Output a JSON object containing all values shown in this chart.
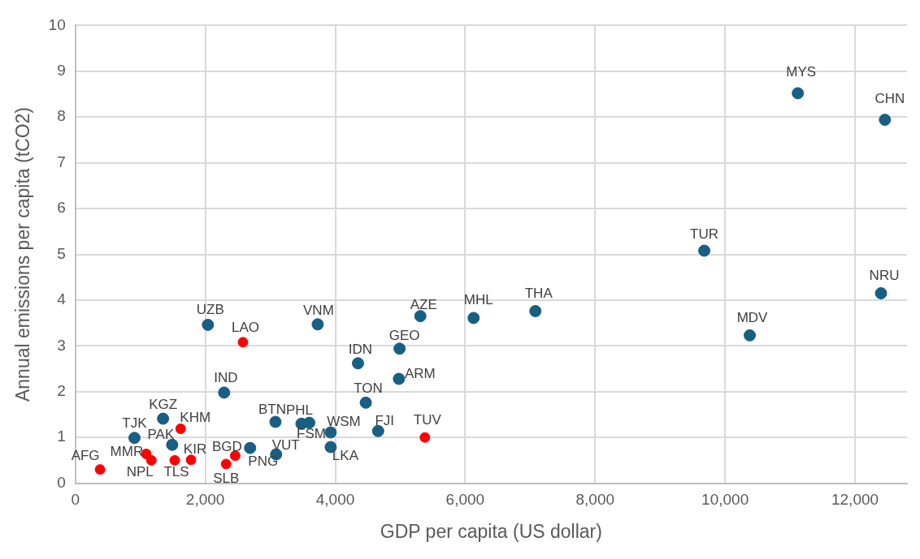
{
  "chart_data": {
    "type": "scatter",
    "xlabel": "GDP per capita (US dollar)",
    "ylabel": "Annual emissions per capita (tCO2)",
    "xlim": [
      0,
      12800
    ],
    "xticks": [
      0,
      {
        "value": 2000,
        "label": "2,000"
      },
      {
        "value": 4000,
        "label": "4,000"
      },
      {
        "value": 6000,
        "label": "6,000"
      },
      {
        "value": 8000,
        "label": "8,000"
      },
      {
        "value": 10000,
        "label": "10,000"
      },
      {
        "value": 12000,
        "label": "12,000"
      }
    ],
    "ylim": [
      0,
      10
    ],
    "yticks": [
      0,
      1,
      2,
      3,
      4,
      5,
      6,
      7,
      8,
      9,
      10
    ],
    "grid": true,
    "marker": "circle",
    "series": [
      {
        "color": "#195e83",
        "x": [
          910,
          1350,
          1490,
          2290,
          2690,
          3080,
          3090,
          3480,
          3600,
          3930,
          3930,
          3730,
          4350,
          4470,
          4990,
          4980,
          5310,
          6130,
          4660,
          2040,
          7080,
          9680,
          10380,
          11120,
          12460,
          12400
        ],
        "values": [
          0.99,
          1.41,
          0.84,
          1.98,
          0.77,
          1.34,
          0.63,
          1.3,
          1.32,
          1.11,
          0.79,
          3.47,
          2.62,
          1.76,
          2.94,
          2.28,
          3.65,
          3.61,
          1.14,
          3.46,
          3.76,
          5.08,
          3.23,
          8.52,
          7.94,
          4.15
        ]
      },
      {
        "color": "#ff0000",
        "x": [
          380,
          1090,
          1170,
          1530,
          1780,
          1620,
          2320,
          2460,
          5380,
          2580
        ],
        "values": [
          0.3,
          0.64,
          0.5,
          0.5,
          0.51,
          1.19,
          0.42,
          0.6,
          1.0,
          3.08
        ]
      }
    ],
    "annotations": [
      {
        "text": "TJK",
        "x": 910,
        "y": 0.99
      },
      {
        "text": "KGZ",
        "x": 1350,
        "y": 1.41
      },
      {
        "text": "PAK",
        "x": 1490,
        "y": 0.84
      },
      {
        "text": "IND",
        "x": 2290,
        "y": 1.98
      },
      {
        "text": "PNG",
        "x": 2690,
        "y": 0.77
      },
      {
        "text": "BTN",
        "x": 3080,
        "y": 1.34
      },
      {
        "text": "VUT",
        "x": 3090,
        "y": 0.63
      },
      {
        "text": "FSM",
        "x": 3480,
        "y": 1.3
      },
      {
        "text": "PHL",
        "x": 3600,
        "y": 1.32
      },
      {
        "text": "WSM",
        "x": 3930,
        "y": 1.11
      },
      {
        "text": "LKA",
        "x": 3930,
        "y": 0.79
      },
      {
        "text": "VNM",
        "x": 3730,
        "y": 3.47
      },
      {
        "text": "IDN",
        "x": 4350,
        "y": 2.62
      },
      {
        "text": "TON",
        "x": 4470,
        "y": 1.76
      },
      {
        "text": "GEO",
        "x": 4990,
        "y": 2.94
      },
      {
        "text": "ARM",
        "x": 4980,
        "y": 2.28
      },
      {
        "text": "AZE",
        "x": 5310,
        "y": 3.65
      },
      {
        "text": "MHL",
        "x": 6130,
        "y": 3.61
      },
      {
        "text": "FJI",
        "x": 4660,
        "y": 1.14
      },
      {
        "text": "UZB",
        "x": 2040,
        "y": 3.46
      },
      {
        "text": "THA",
        "x": 7080,
        "y": 3.76
      },
      {
        "text": "TUR",
        "x": 9680,
        "y": 5.08
      },
      {
        "text": "MDV",
        "x": 10380,
        "y": 3.23
      },
      {
        "text": "MYS",
        "x": 11120,
        "y": 8.52
      },
      {
        "text": "CHN",
        "x": 12460,
        "y": 7.94
      },
      {
        "text": "NRU",
        "x": 12400,
        "y": 4.15
      },
      {
        "text": "AFG",
        "x": 380,
        "y": 0.3
      },
      {
        "text": "MMR",
        "x": 1090,
        "y": 0.64
      },
      {
        "text": "NPL",
        "x": 1170,
        "y": 0.5
      },
      {
        "text": "TLS",
        "x": 1530,
        "y": 0.5
      },
      {
        "text": "KIR",
        "x": 1780,
        "y": 0.51
      },
      {
        "text": "KHM",
        "x": 1620,
        "y": 1.19
      },
      {
        "text": "SLB",
        "x": 2320,
        "y": 0.42
      },
      {
        "text": "BGD",
        "x": 2460,
        "y": 0.6
      },
      {
        "text": "TUV",
        "x": 5380,
        "y": 1.0
      },
      {
        "text": "LAO",
        "x": 2580,
        "y": 3.08
      }
    ]
  }
}
